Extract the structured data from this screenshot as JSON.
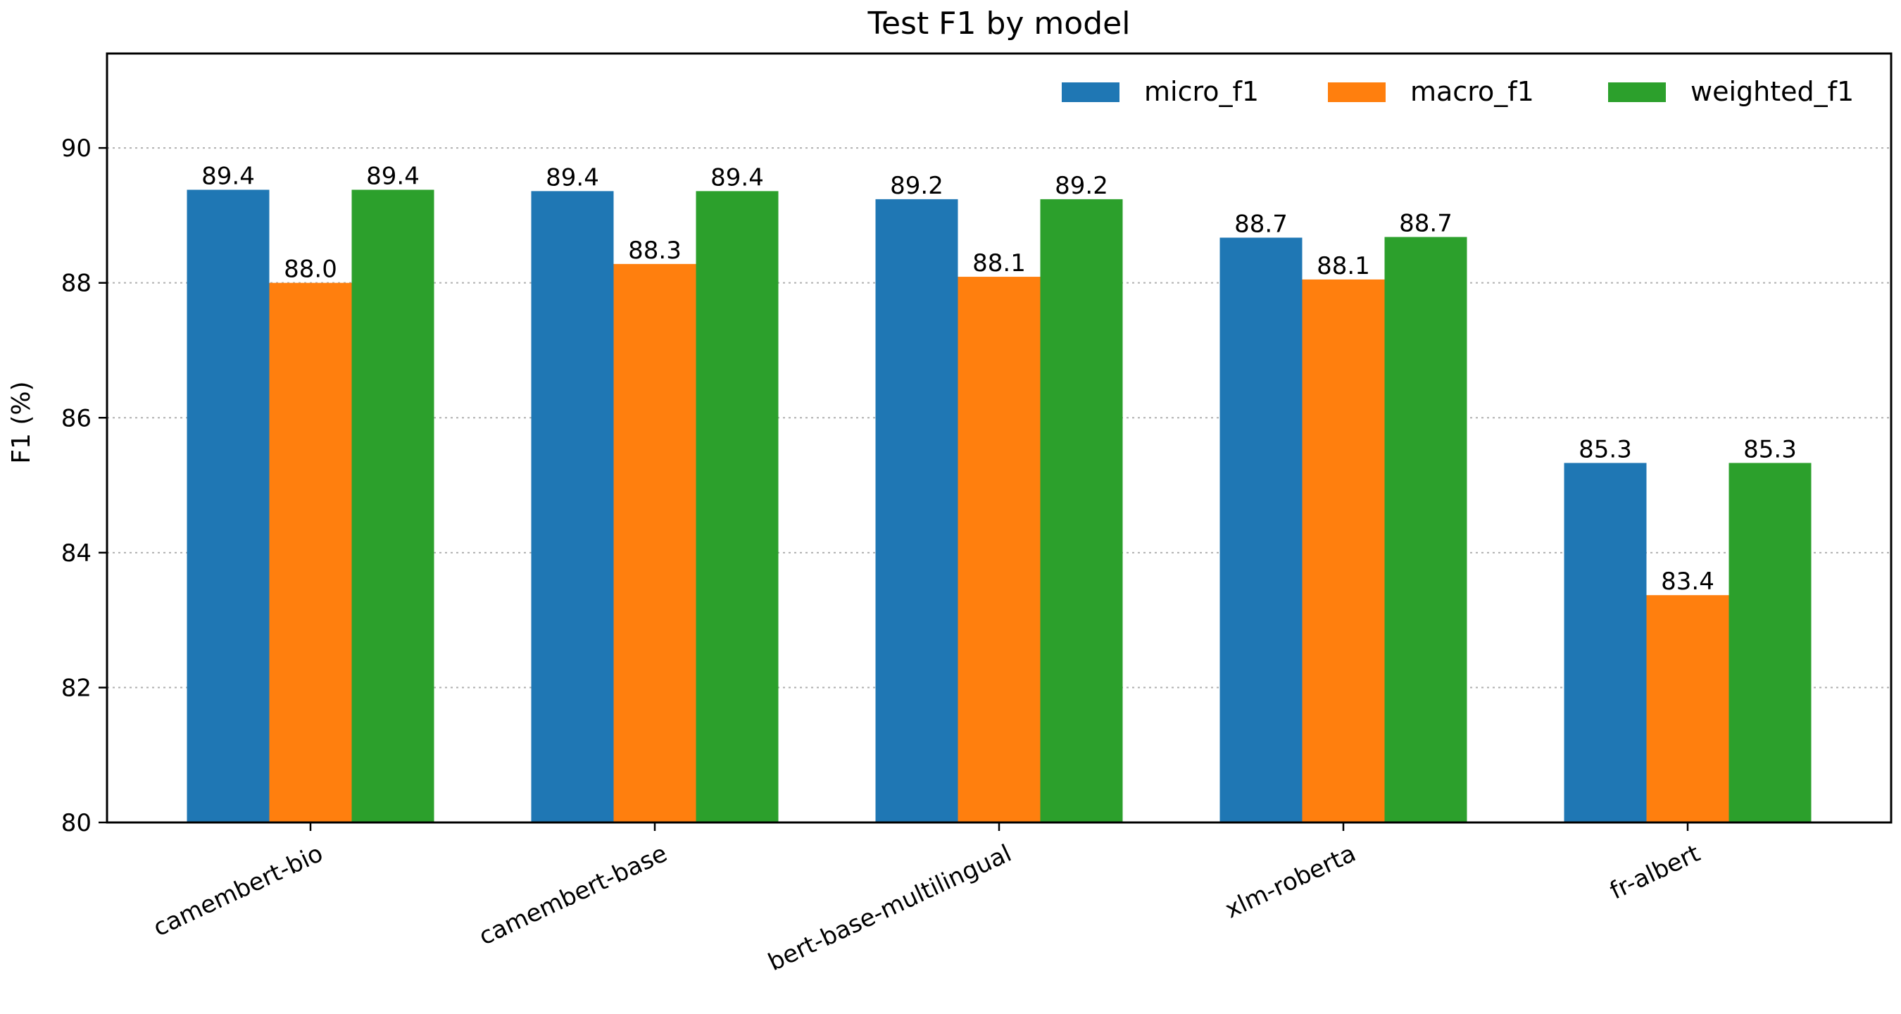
{
  "chart_data": {
    "type": "bar",
    "title": "Test F1 by model",
    "xlabel": "",
    "ylabel": "F1 (%)",
    "ylim": [
      80,
      91.4
    ],
    "yticks": [
      80,
      82,
      84,
      86,
      88,
      90
    ],
    "grid": "y, dotted",
    "legend_position": "top-right",
    "categories": [
      "camembert-bio",
      "camembert-base",
      "bert-base-multilingual",
      "xlm-roberta",
      "fr-albert"
    ],
    "series": [
      {
        "name": "micro_f1",
        "color": "#1f77b4",
        "values": [
          89.38,
          89.36,
          89.24,
          88.67,
          85.33
        ],
        "labels": [
          "89.4",
          "89.4",
          "89.2",
          "88.7",
          "85.3"
        ]
      },
      {
        "name": "macro_f1",
        "color": "#ff7f0e",
        "values": [
          88.0,
          88.28,
          88.09,
          88.05,
          83.37
        ],
        "labels": [
          "88.0",
          "88.3",
          "88.1",
          "88.1",
          "83.4"
        ]
      },
      {
        "name": "weighted_f1",
        "color": "#2ca02c",
        "values": [
          89.38,
          89.36,
          89.24,
          88.68,
          85.33
        ],
        "labels": [
          "89.4",
          "89.4",
          "89.2",
          "88.7",
          "85.3"
        ]
      }
    ]
  }
}
